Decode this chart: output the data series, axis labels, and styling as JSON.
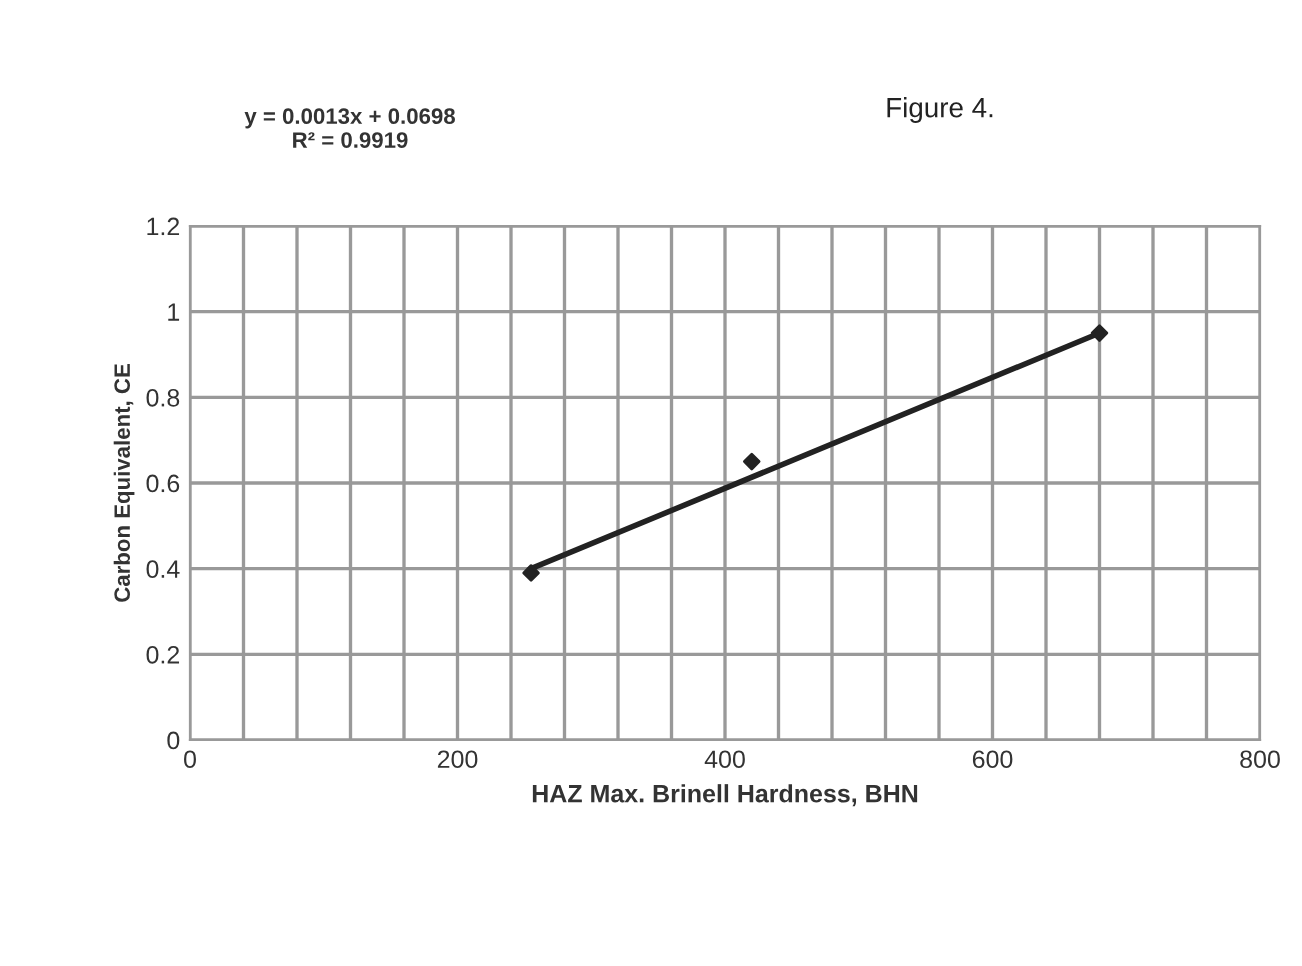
{
  "chart_data": {
    "type": "scatter",
    "title": "Figure 4.",
    "xlabel": "HAZ Max. Brinell Hardness, BHN",
    "ylabel": "Carbon Equivalent, CE",
    "annotations": [
      "y = 0.0013x + 0.0698\nR² = 0.9919"
    ],
    "series": [
      {
        "color": "#222222",
        "x": [
          255,
          420,
          680
        ],
        "values": [
          0.39,
          0.65,
          0.95
        ],
        "marker": "diamond"
      },
      {
        "type": "line",
        "color": "#222222",
        "x": [
          255,
          680
        ],
        "values": [
          0.4,
          0.95
        ],
        "marker": "none",
        "line_style": "solid"
      }
    ],
    "xlim": [
      0,
      800
    ],
    "ylim": [
      0,
      1.2
    ],
    "xticks": [
      0,
      {
        "value": 40,
        "label": null
      },
      {
        "value": 80,
        "label": null
      },
      {
        "value": 120,
        "label": null
      },
      {
        "value": 160,
        "label": null
      },
      200,
      {
        "value": 240,
        "label": null
      },
      {
        "value": 280,
        "label": null
      },
      {
        "value": 320,
        "label": null
      },
      {
        "value": 360,
        "label": null
      },
      400,
      {
        "value": 440,
        "label": null
      },
      {
        "value": 480,
        "label": null
      },
      {
        "value": 520,
        "label": null
      },
      {
        "value": 560,
        "label": null
      },
      600,
      {
        "value": 640,
        "label": null
      },
      {
        "value": 680,
        "label": null
      },
      {
        "value": 720,
        "label": null
      },
      {
        "value": 760,
        "label": null
      },
      800
    ],
    "yticks": [
      0,
      0.2,
      0.4,
      0.6,
      0.8,
      1,
      1.2
    ],
    "grid": true,
    "legend": false
  }
}
